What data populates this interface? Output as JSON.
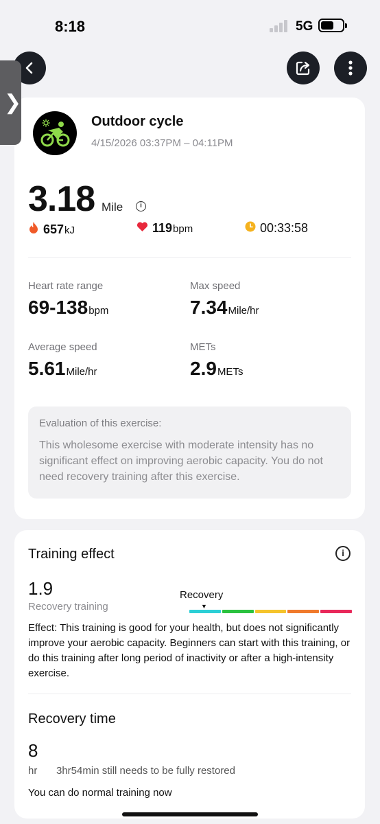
{
  "status_bar": {
    "time": "8:18",
    "network": "5G"
  },
  "activity": {
    "title": "Outdoor cycle",
    "time_range": "4/15/2026 03:37PM – 04:11PM",
    "icon": "cycling-icon"
  },
  "summary": {
    "distance": "3.18",
    "distance_unit": "Mile",
    "calories": "657",
    "calories_unit": "kJ",
    "heart_rate": "119",
    "heart_rate_unit": "bpm",
    "duration": "00:33:58"
  },
  "metrics": {
    "hr_range_label": "Heart rate range",
    "hr_range_value": "69-138",
    "hr_range_unit": "bpm",
    "max_speed_label": "Max speed",
    "max_speed_value": "7.34",
    "max_speed_unit": "Mile/hr",
    "avg_speed_label": "Average speed",
    "avg_speed_value": "5.61",
    "avg_speed_unit": "Mile/hr",
    "mets_label": "METs",
    "mets_value": "2.9",
    "mets_unit": "METs"
  },
  "evaluation": {
    "title": "Evaluation of this exercise:",
    "text": "This wholesome exercise with moderate intensity has no significant effect on improving aerobic capacity. You do not need recovery training after this exercise."
  },
  "training_effect": {
    "title": "Training effect",
    "value": "1.9",
    "subtitle": "Recovery training",
    "marker_label": "Recovery",
    "scale_colors": [
      "#2ccfd6",
      "#2bc23f",
      "#f5c42c",
      "#f07a2c",
      "#e8285a"
    ],
    "effect_text": "Effect: This training is good for your health, but does not significantly improve your aerobic capacity. Beginners can start with this training, or do this training after long period of inactivity or after a high-intensity exercise."
  },
  "recovery": {
    "title": "Recovery time",
    "value": "8",
    "unit": "hr",
    "needs": "3hr54min still needs to be fully restored",
    "note": "You can do normal training now"
  },
  "colors": {
    "accent_green": "#8fd94a",
    "flame": "#f05a28",
    "heart": "#e8283c",
    "clock": "#f5b21e"
  }
}
